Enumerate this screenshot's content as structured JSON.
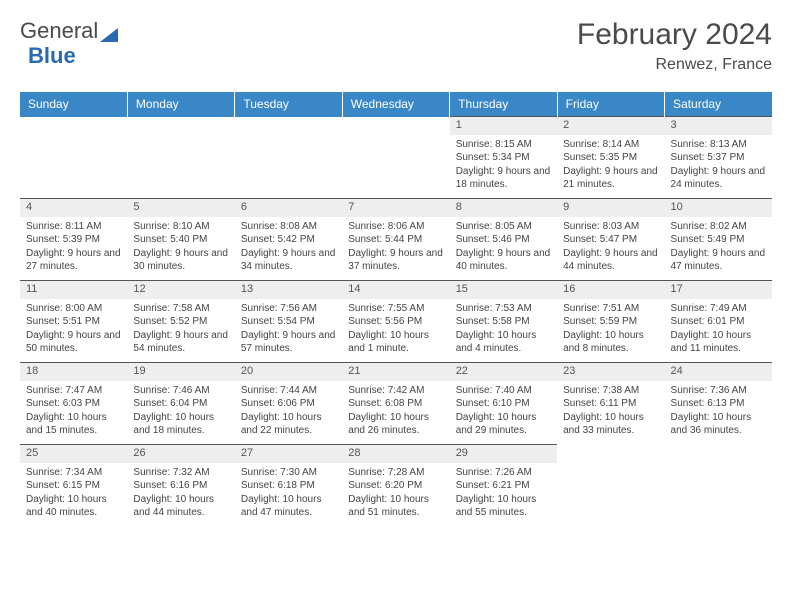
{
  "logo": {
    "part1": "General",
    "part2": "Blue"
  },
  "title": "February 2024",
  "location": "Renwez, France",
  "header_bg": "#3a87c8",
  "daynum_bg": "#eeeeee",
  "border_color": "#555555",
  "days_of_week": [
    "Sunday",
    "Monday",
    "Tuesday",
    "Wednesday",
    "Thursday",
    "Friday",
    "Saturday"
  ],
  "weeks": [
    [
      null,
      null,
      null,
      null,
      {
        "n": "1",
        "sr": "8:15 AM",
        "ss": "5:34 PM",
        "dl": "9 hours and 18 minutes."
      },
      {
        "n": "2",
        "sr": "8:14 AM",
        "ss": "5:35 PM",
        "dl": "9 hours and 21 minutes."
      },
      {
        "n": "3",
        "sr": "8:13 AM",
        "ss": "5:37 PM",
        "dl": "9 hours and 24 minutes."
      }
    ],
    [
      {
        "n": "4",
        "sr": "8:11 AM",
        "ss": "5:39 PM",
        "dl": "9 hours and 27 minutes."
      },
      {
        "n": "5",
        "sr": "8:10 AM",
        "ss": "5:40 PM",
        "dl": "9 hours and 30 minutes."
      },
      {
        "n": "6",
        "sr": "8:08 AM",
        "ss": "5:42 PM",
        "dl": "9 hours and 34 minutes."
      },
      {
        "n": "7",
        "sr": "8:06 AM",
        "ss": "5:44 PM",
        "dl": "9 hours and 37 minutes."
      },
      {
        "n": "8",
        "sr": "8:05 AM",
        "ss": "5:46 PM",
        "dl": "9 hours and 40 minutes."
      },
      {
        "n": "9",
        "sr": "8:03 AM",
        "ss": "5:47 PM",
        "dl": "9 hours and 44 minutes."
      },
      {
        "n": "10",
        "sr": "8:02 AM",
        "ss": "5:49 PM",
        "dl": "9 hours and 47 minutes."
      }
    ],
    [
      {
        "n": "11",
        "sr": "8:00 AM",
        "ss": "5:51 PM",
        "dl": "9 hours and 50 minutes."
      },
      {
        "n": "12",
        "sr": "7:58 AM",
        "ss": "5:52 PM",
        "dl": "9 hours and 54 minutes."
      },
      {
        "n": "13",
        "sr": "7:56 AM",
        "ss": "5:54 PM",
        "dl": "9 hours and 57 minutes."
      },
      {
        "n": "14",
        "sr": "7:55 AM",
        "ss": "5:56 PM",
        "dl": "10 hours and 1 minute."
      },
      {
        "n": "15",
        "sr": "7:53 AM",
        "ss": "5:58 PM",
        "dl": "10 hours and 4 minutes."
      },
      {
        "n": "16",
        "sr": "7:51 AM",
        "ss": "5:59 PM",
        "dl": "10 hours and 8 minutes."
      },
      {
        "n": "17",
        "sr": "7:49 AM",
        "ss": "6:01 PM",
        "dl": "10 hours and 11 minutes."
      }
    ],
    [
      {
        "n": "18",
        "sr": "7:47 AM",
        "ss": "6:03 PM",
        "dl": "10 hours and 15 minutes."
      },
      {
        "n": "19",
        "sr": "7:46 AM",
        "ss": "6:04 PM",
        "dl": "10 hours and 18 minutes."
      },
      {
        "n": "20",
        "sr": "7:44 AM",
        "ss": "6:06 PM",
        "dl": "10 hours and 22 minutes."
      },
      {
        "n": "21",
        "sr": "7:42 AM",
        "ss": "6:08 PM",
        "dl": "10 hours and 26 minutes."
      },
      {
        "n": "22",
        "sr": "7:40 AM",
        "ss": "6:10 PM",
        "dl": "10 hours and 29 minutes."
      },
      {
        "n": "23",
        "sr": "7:38 AM",
        "ss": "6:11 PM",
        "dl": "10 hours and 33 minutes."
      },
      {
        "n": "24",
        "sr": "7:36 AM",
        "ss": "6:13 PM",
        "dl": "10 hours and 36 minutes."
      }
    ],
    [
      {
        "n": "25",
        "sr": "7:34 AM",
        "ss": "6:15 PM",
        "dl": "10 hours and 40 minutes."
      },
      {
        "n": "26",
        "sr": "7:32 AM",
        "ss": "6:16 PM",
        "dl": "10 hours and 44 minutes."
      },
      {
        "n": "27",
        "sr": "7:30 AM",
        "ss": "6:18 PM",
        "dl": "10 hours and 47 minutes."
      },
      {
        "n": "28",
        "sr": "7:28 AM",
        "ss": "6:20 PM",
        "dl": "10 hours and 51 minutes."
      },
      {
        "n": "29",
        "sr": "7:26 AM",
        "ss": "6:21 PM",
        "dl": "10 hours and 55 minutes."
      },
      null,
      null
    ]
  ],
  "labels": {
    "sunrise": "Sunrise: ",
    "sunset": "Sunset: ",
    "daylight": "Daylight: "
  }
}
